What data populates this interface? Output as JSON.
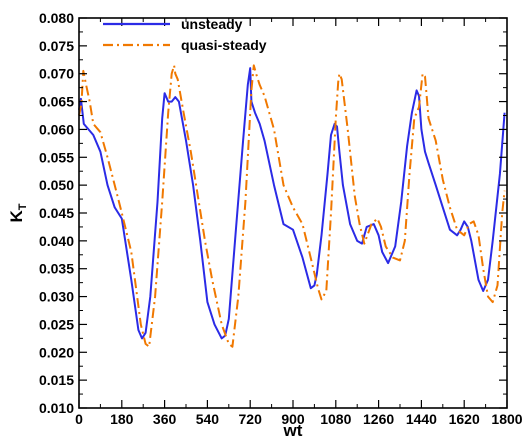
{
  "chart_data": {
    "type": "line",
    "title": "",
    "xlabel": "wt",
    "ylabel": "K",
    "ylabel_subscript": "T",
    "xlim": [
      0,
      1800
    ],
    "ylim": [
      0.01,
      0.08
    ],
    "xticks": [
      0,
      180,
      360,
      540,
      720,
      900,
      1080,
      1260,
      1440,
      1620,
      1800
    ],
    "xtick_labels": [
      "0",
      "180",
      "360",
      "540",
      "720",
      "900",
      "1080",
      "1260",
      "1440",
      "1620",
      "1800"
    ],
    "yticks": [
      0.01,
      0.015,
      0.02,
      0.025,
      0.03,
      0.035,
      0.04,
      0.045,
      0.05,
      0.055,
      0.06,
      0.065,
      0.07,
      0.075,
      0.08
    ],
    "ytick_labels": [
      "0.010",
      "0.015",
      "0.020",
      "0.025",
      "0.030",
      "0.035",
      "0.040",
      "0.045",
      "0.050",
      "0.055",
      "0.060",
      "0.065",
      "0.070",
      "0.075",
      "0.080"
    ],
    "grid": false,
    "legend_position": "top-left",
    "series": [
      {
        "name": "unsteady",
        "color": "#2b2be6",
        "style": "solid",
        "x": [
          0,
          8,
          20,
          40,
          60,
          90,
          120,
          150,
          180,
          220,
          250,
          265,
          280,
          300,
          330,
          350,
          360,
          375,
          390,
          405,
          420,
          450,
          480,
          510,
          540,
          570,
          600,
          615,
          630,
          660,
          690,
          710,
          720,
          725,
          740,
          760,
          780,
          820,
          860,
          900,
          940,
          975,
          990,
          1000,
          1020,
          1045,
          1060,
          1075,
          1085,
          1095,
          1110,
          1140,
          1170,
          1190,
          1210,
          1240,
          1260,
          1275,
          1300,
          1330,
          1355,
          1380,
          1400,
          1420,
          1430,
          1440,
          1455,
          1470,
          1500,
          1530,
          1560,
          1590,
          1605,
          1620,
          1635,
          1650,
          1680,
          1700,
          1720,
          1740,
          1770,
          1790
        ],
        "y": [
          0.0635,
          0.0655,
          0.061,
          0.06,
          0.059,
          0.056,
          0.05,
          0.046,
          0.044,
          0.033,
          0.024,
          0.0225,
          0.0235,
          0.03,
          0.047,
          0.062,
          0.0665,
          0.065,
          0.065,
          0.0658,
          0.065,
          0.058,
          0.05,
          0.04,
          0.029,
          0.025,
          0.0225,
          0.023,
          0.026,
          0.042,
          0.058,
          0.068,
          0.071,
          0.065,
          0.063,
          0.061,
          0.058,
          0.05,
          0.043,
          0.042,
          0.037,
          0.0315,
          0.032,
          0.034,
          0.041,
          0.052,
          0.059,
          0.061,
          0.0605,
          0.056,
          0.05,
          0.043,
          0.04,
          0.0395,
          0.0425,
          0.043,
          0.041,
          0.038,
          0.036,
          0.039,
          0.047,
          0.057,
          0.063,
          0.067,
          0.066,
          0.06,
          0.056,
          0.054,
          0.05,
          0.046,
          0.042,
          0.041,
          0.042,
          0.0435,
          0.0425,
          0.04,
          0.033,
          0.031,
          0.033,
          0.04,
          0.052,
          0.063
        ]
      },
      {
        "name": "quasi-steady",
        "color": "#f07800",
        "style": "dashdot",
        "x": [
          0,
          10,
          18,
          30,
          45,
          60,
          90,
          120,
          150,
          180,
          220,
          260,
          280,
          295,
          320,
          350,
          375,
          390,
          400,
          405,
          415,
          440,
          470,
          500,
          530,
          560,
          600,
          630,
          645,
          670,
          700,
          725,
          735,
          745,
          760,
          780,
          820,
          860,
          900,
          940,
          980,
          1005,
          1020,
          1040,
          1060,
          1080,
          1090,
          1095,
          1105,
          1130,
          1160,
          1180,
          1200,
          1230,
          1255,
          1270,
          1290,
          1320,
          1350,
          1370,
          1390,
          1410,
          1430,
          1445,
          1455,
          1460,
          1470,
          1500,
          1530,
          1560,
          1590,
          1620,
          1640,
          1660,
          1680,
          1700,
          1720,
          1740,
          1760,
          1780,
          1790
        ],
        "y": [
          0.0625,
          0.0645,
          0.0705,
          0.068,
          0.065,
          0.061,
          0.0595,
          0.055,
          0.05,
          0.045,
          0.038,
          0.025,
          0.0215,
          0.021,
          0.03,
          0.047,
          0.063,
          0.07,
          0.0715,
          0.07,
          0.069,
          0.063,
          0.056,
          0.048,
          0.04,
          0.033,
          0.025,
          0.0215,
          0.021,
          0.03,
          0.047,
          0.067,
          0.0715,
          0.07,
          0.068,
          0.066,
          0.06,
          0.05,
          0.046,
          0.043,
          0.036,
          0.0315,
          0.0295,
          0.031,
          0.045,
          0.062,
          0.0685,
          0.07,
          0.069,
          0.06,
          0.048,
          0.043,
          0.0395,
          0.043,
          0.044,
          0.0425,
          0.039,
          0.037,
          0.0365,
          0.04,
          0.052,
          0.062,
          0.064,
          0.07,
          0.0695,
          0.067,
          0.062,
          0.058,
          0.051,
          0.046,
          0.042,
          0.041,
          0.043,
          0.0435,
          0.041,
          0.035,
          0.03,
          0.029,
          0.032,
          0.045,
          0.049
        ]
      }
    ]
  }
}
